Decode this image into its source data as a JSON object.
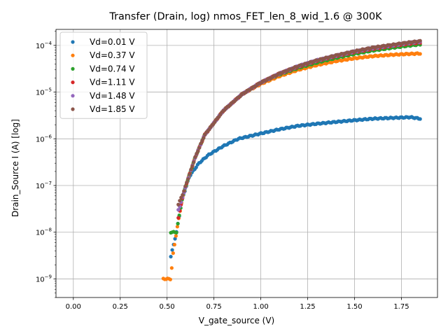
{
  "chart_data": {
    "type": "scatter",
    "title": "Transfer (Drain, log) nmos_FET_len_8_wid_1.6 @ 300K",
    "xlabel": "V_gate_source (V)",
    "ylabel": "Drain_Source I (A) [log]",
    "xlim": [
      -0.0925,
      1.9425
    ],
    "ylim": [
      4e-10,
      0.00022
    ],
    "yscale": "log",
    "grid": true,
    "legend_position": "top-left",
    "x_ticks": [
      "0.00",
      "0.25",
      "0.50",
      "0.75",
      "1.00",
      "1.25",
      "1.50",
      "1.75"
    ],
    "x_tick_values": [
      0,
      0.25,
      0.5,
      0.75,
      1.0,
      1.25,
      1.5,
      1.75
    ],
    "y_tick_exponents": [
      -9,
      -8,
      -7,
      -6,
      -5,
      -4
    ],
    "series": [
      {
        "name": "Vd=0.01 V",
        "color": "#1f77b4",
        "points": [
          [
            0.52,
            3e-09
          ],
          [
            0.55,
            1e-08
          ],
          [
            0.58,
            5e-08
          ],
          [
            0.62,
            1.6e-07
          ],
          [
            0.67,
            3e-07
          ],
          [
            0.72,
            4.5e-07
          ],
          [
            0.8,
            7e-07
          ],
          [
            0.88,
            1e-06
          ],
          [
            1.0,
            1.3e-06
          ],
          [
            1.1,
            1.6e-06
          ],
          [
            1.2,
            1.9e-06
          ],
          [
            1.3,
            2.1e-06
          ],
          [
            1.4,
            2.3e-06
          ],
          [
            1.5,
            2.5e-06
          ],
          [
            1.6,
            2.7e-06
          ],
          [
            1.7,
            2.8e-06
          ],
          [
            1.8,
            2.9e-06
          ],
          [
            1.85,
            2.7e-06
          ]
        ]
      },
      {
        "name": "Vd=0.37 V",
        "color": "#ff7f0e",
        "points": [
          [
            0.48,
            1e-09
          ],
          [
            0.52,
            1e-09
          ],
          [
            0.53,
            3e-09
          ],
          [
            0.55,
            1e-08
          ],
          [
            0.58,
            5e-08
          ],
          [
            0.6,
            1e-07
          ],
          [
            0.65,
            4e-07
          ],
          [
            0.7,
            1.2e-06
          ],
          [
            0.8,
            4e-06
          ],
          [
            0.9,
            9e-06
          ],
          [
            1.0,
            1.5e-05
          ],
          [
            1.1,
            2.2e-05
          ],
          [
            1.2,
            3e-05
          ],
          [
            1.3,
            3.8e-05
          ],
          [
            1.4,
            4.6e-05
          ],
          [
            1.5,
            5.3e-05
          ],
          [
            1.6,
            5.9e-05
          ],
          [
            1.7,
            6.3e-05
          ],
          [
            1.8,
            6.6e-05
          ],
          [
            1.85,
            6.7e-05
          ]
        ]
      },
      {
        "name": "Vd=0.74 V",
        "color": "#2ca02c",
        "points": [
          [
            0.52,
            1e-08
          ],
          [
            0.55,
            1e-08
          ],
          [
            0.58,
            5e-08
          ],
          [
            0.6,
            1e-07
          ],
          [
            0.65,
            4e-07
          ],
          [
            0.7,
            1.2e-06
          ],
          [
            0.8,
            4e-06
          ],
          [
            0.9,
            9e-06
          ],
          [
            1.0,
            1.6e-05
          ],
          [
            1.1,
            2.4e-05
          ],
          [
            1.2,
            3.3e-05
          ],
          [
            1.3,
            4.3e-05
          ],
          [
            1.4,
            5.4e-05
          ],
          [
            1.5,
            6.6e-05
          ],
          [
            1.6,
            7.8e-05
          ],
          [
            1.7,
            8.9e-05
          ],
          [
            1.8,
            0.0001
          ],
          [
            1.85,
            0.000105
          ]
        ]
      },
      {
        "name": "Vd=1.11 V",
        "color": "#d62728",
        "points": [
          [
            0.56,
            2e-08
          ],
          [
            0.58,
            5e-08
          ],
          [
            0.6,
            1e-07
          ],
          [
            0.65,
            4e-07
          ],
          [
            0.7,
            1.2e-06
          ],
          [
            0.8,
            4e-06
          ],
          [
            0.9,
            9e-06
          ],
          [
            1.0,
            1.6e-05
          ],
          [
            1.1,
            2.5e-05
          ],
          [
            1.2,
            3.5e-05
          ],
          [
            1.3,
            4.7e-05
          ],
          [
            1.4,
            5.9e-05
          ],
          [
            1.5,
            7.2e-05
          ],
          [
            1.6,
            8.5e-05
          ],
          [
            1.7,
            9.8e-05
          ],
          [
            1.8,
            0.00011
          ],
          [
            1.85,
            0.000115
          ]
        ]
      },
      {
        "name": "Vd=1.48 V",
        "color": "#9467bd",
        "points": [
          [
            0.56,
            3e-08
          ],
          [
            0.58,
            5e-08
          ],
          [
            0.6,
            1e-07
          ],
          [
            0.65,
            4e-07
          ],
          [
            0.7,
            1.2e-06
          ],
          [
            0.8,
            4e-06
          ],
          [
            0.9,
            9e-06
          ],
          [
            1.0,
            1.6e-05
          ],
          [
            1.1,
            2.5e-05
          ],
          [
            1.2,
            3.6e-05
          ],
          [
            1.3,
            4.8e-05
          ],
          [
            1.4,
            6e-05
          ],
          [
            1.5,
            7.4e-05
          ],
          [
            1.6,
            8.8e-05
          ],
          [
            1.7,
            0.0001
          ],
          [
            1.8,
            0.000115
          ],
          [
            1.85,
            0.00012
          ]
        ]
      },
      {
        "name": "Vd=1.85 V",
        "color": "#8c564b",
        "points": [
          [
            0.56,
            4e-08
          ],
          [
            0.58,
            6e-08
          ],
          [
            0.6,
            1e-07
          ],
          [
            0.65,
            4e-07
          ],
          [
            0.7,
            1.2e-06
          ],
          [
            0.8,
            4e-06
          ],
          [
            0.9,
            9e-06
          ],
          [
            1.0,
            1.6e-05
          ],
          [
            1.1,
            2.5e-05
          ],
          [
            1.2,
            3.6e-05
          ],
          [
            1.3,
            4.8e-05
          ],
          [
            1.4,
            6.1e-05
          ],
          [
            1.5,
            7.5e-05
          ],
          [
            1.6,
            9e-05
          ],
          [
            1.7,
            0.000103
          ],
          [
            1.8,
            0.000117
          ],
          [
            1.85,
            0.000123
          ]
        ]
      }
    ]
  }
}
